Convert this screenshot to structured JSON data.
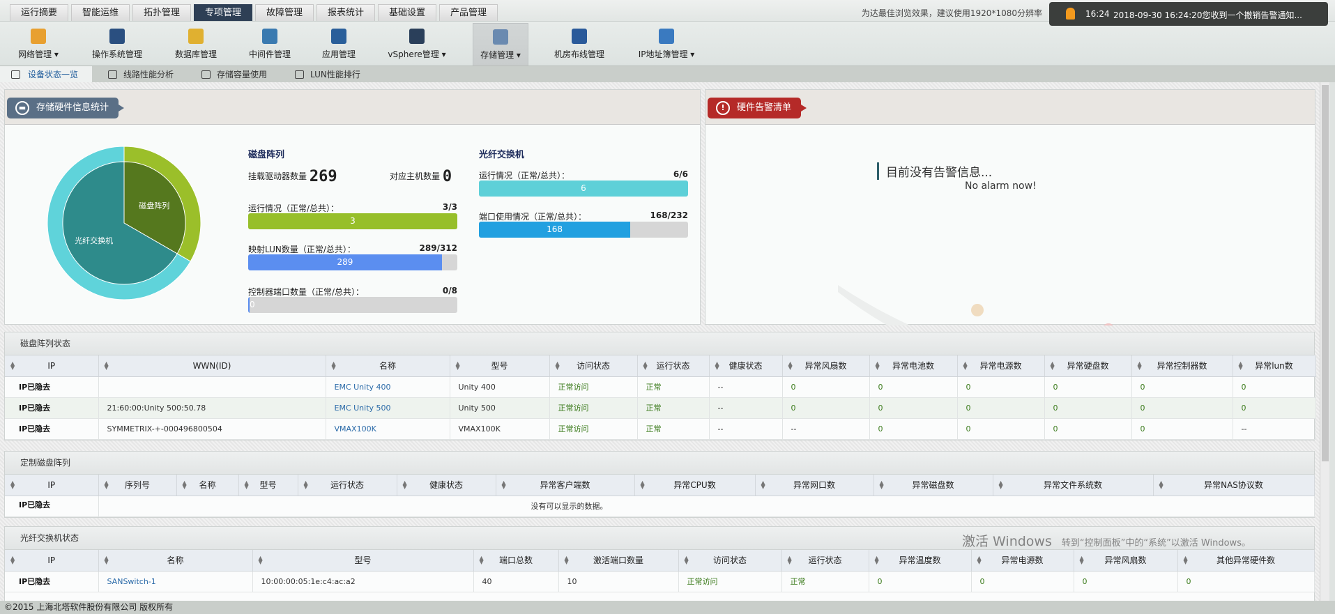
{
  "top_tabs": [
    {
      "label": "运行摘要"
    },
    {
      "label": "智能运维"
    },
    {
      "label": "拓扑管理"
    },
    {
      "label": "专项管理",
      "active": true
    },
    {
      "label": "故障管理"
    },
    {
      "label": "报表统计"
    },
    {
      "label": "基础设置"
    },
    {
      "label": "产品管理"
    }
  ],
  "icon_nav": [
    {
      "label": "网络管理 ▾",
      "icon": "globe-icon",
      "color": "#e8a030"
    },
    {
      "label": "操作系统管理",
      "icon": "computer-icon",
      "color": "#2a4f80"
    },
    {
      "label": "数据库管理",
      "icon": "database-icon",
      "color": "#e0b030"
    },
    {
      "label": "中间件管理",
      "icon": "gears-icon",
      "color": "#3a7ab0"
    },
    {
      "label": "应用管理",
      "icon": "app-icon",
      "color": "#2a5f9a"
    },
    {
      "label": "vSphere管理 ▾",
      "icon": "cloud-monitor-icon",
      "color": "#2a3f5a"
    },
    {
      "label": "存储管理 ▾",
      "icon": "storage-icon",
      "color": "#6a8ab0",
      "active": true
    },
    {
      "label": "机房布线管理",
      "icon": "rack-icon",
      "color": "#2a5a9a"
    },
    {
      "label": "IP地址簿管理 ▾",
      "icon": "ip-book-icon",
      "color": "#3a7ac0"
    }
  ],
  "sub_tabs": [
    {
      "label": "设备状态一览",
      "active": true
    },
    {
      "label": "线路性能分析"
    },
    {
      "label": "存储容量使用"
    },
    {
      "label": "LUN性能排行"
    }
  ],
  "notification": {
    "bg_text": "为达最佳浏览效果，建议使用1920*1080分辨率",
    "time": "16:24",
    "message": "2018-09-30 16:24:20您收到一个撤销告警通知..."
  },
  "stats": {
    "title": "存储硬件信息统计",
    "pie": [
      {
        "label": "磁盘阵列",
        "value": 3,
        "inner": "#55781e",
        "outer": "#9bbf2a"
      },
      {
        "label": "光纤交换机",
        "value": 6,
        "inner": "#2e8b8b",
        "outer": "#5fd3da"
      }
    ],
    "disk": {
      "title": "磁盘阵列",
      "drives_label": "挂载驱动器数量",
      "drives": "269",
      "hosts_label": "对应主机数量",
      "hosts": "0",
      "bars": [
        {
          "label": "运行情况（正常/总共）：",
          "ratio": "3/3",
          "value": 3,
          "total": 3,
          "text": "3",
          "color": "#97bf2a"
        },
        {
          "label": "映射LUN数量（正常/总共）：",
          "ratio": "289/312",
          "value": 289,
          "total": 312,
          "text": "289",
          "color": "#5b8ef0"
        },
        {
          "label": "控制器端口数量（正常/总共）：",
          "ratio": "0/8",
          "value": 0,
          "total": 8,
          "text": "0",
          "color": "#5b8ef0"
        }
      ]
    },
    "fiber": {
      "title": "光纤交换机",
      "bars": [
        {
          "label": "运行情况（正常/总共）：",
          "ratio": "6/6",
          "value": 6,
          "total": 6,
          "text": "6",
          "color": "#5ed0d8"
        },
        {
          "label": "端口使用情况（正常/总共）：",
          "ratio": "168/232",
          "value": 168,
          "total": 232,
          "text": "168",
          "color": "#22a0e0"
        }
      ]
    }
  },
  "alarms": {
    "title": "硬件告警清单",
    "empty_cn": "目前没有告警信息...",
    "empty_en": "No alarm now!"
  },
  "disk_table": {
    "title": "磁盘阵列状态",
    "columns": [
      "IP",
      "WWN(ID)",
      "名称",
      "型号",
      "访问状态",
      "运行状态",
      "健康状态",
      "异常风扇数",
      "异常电池数",
      "异常电源数",
      "异常硬盘数",
      "异常控制器数",
      "异常lun数"
    ],
    "rows": [
      [
        "IP已隐去",
        "",
        "EMC Unity 400",
        "Unity 400",
        "正常访问",
        "正常",
        "--",
        "0",
        "0",
        "0",
        "0",
        "0",
        "0"
      ],
      [
        "IP已隐去",
        "21:60:00:Unity 500:50.78",
        "EMC Unity 500",
        "Unity 500",
        "正常访问",
        "正常",
        "--",
        "0",
        "0",
        "0",
        "0",
        "0",
        "0"
      ],
      [
        "IP已隐去",
        "SYMMETRIX-+-000496800504",
        "VMAX100K",
        "VMAX100K",
        "正常访问",
        "正常",
        "--",
        "--",
        "0",
        "0",
        "0",
        "0",
        "--"
      ]
    ]
  },
  "custom_table": {
    "title": "定制磁盘阵列",
    "columns": [
      "IP",
      "序列号",
      "名称",
      "型号",
      "运行状态",
      "健康状态",
      "异常客户端数",
      "异常CPU数",
      "异常网口数",
      "异常磁盘数",
      "异常文件系统数",
      "异常NAS协议数"
    ],
    "ip": "IP已隐去",
    "empty": "没有可以显示的数据。"
  },
  "fc_table": {
    "title": "光纤交换机状态",
    "columns": [
      "IP",
      "名称",
      "型号",
      "端口总数",
      "激活端口数量",
      "访问状态",
      "运行状态",
      "异常温度数",
      "异常电源数",
      "异常风扇数",
      "其他异常硬件数"
    ],
    "rows": [
      [
        "IP已隐去",
        "SANSwitch-1",
        "10:00:00:05:1e:c4:ac:a2",
        "40",
        "10",
        "正常访问",
        "正常",
        "0",
        "0",
        "0",
        "0"
      ]
    ]
  },
  "watermark": {
    "line1": "激活 Windows",
    "line2": "转到“控制面板”中的“系统”以激活 Windows。"
  },
  "footer": "©2015 上海北塔软件股份有限公司 版权所有"
}
